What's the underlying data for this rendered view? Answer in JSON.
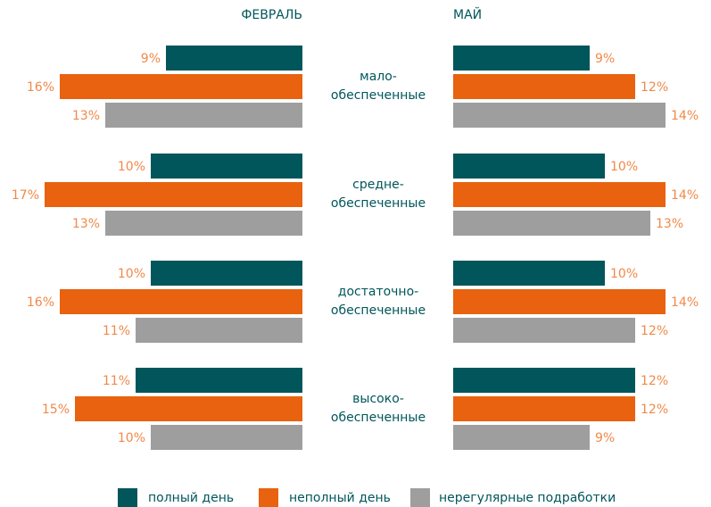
{
  "chart_data": [
    {
      "type": "bar",
      "orientation": "horizontal",
      "direction": "left",
      "title": "ФЕВРАЛЬ",
      "categories": [
        "мало-\nобеспеченные",
        "средне-\nобеспеченные",
        "достаточно-\nобеспеченные",
        "высоко-\nобеспеченные"
      ],
      "xlim": [
        0,
        17
      ],
      "series": [
        {
          "name": "полный день",
          "color": "#00565b",
          "values": [
            9,
            10,
            10,
            11
          ],
          "value_labels": [
            "9%",
            "10%",
            "10%",
            "11%"
          ]
        },
        {
          "name": "неполный день",
          "color": "#e8620f",
          "values": [
            16,
            17,
            16,
            15
          ],
          "value_labels": [
            "16%",
            "17%",
            "16%",
            "15%"
          ]
        },
        {
          "name": "нерегулярные подработки",
          "color": "#9e9e9e",
          "values": [
            13,
            13,
            11,
            10
          ],
          "value_labels": [
            "13%",
            "13%",
            "11%",
            "10%"
          ]
        }
      ]
    },
    {
      "type": "bar",
      "orientation": "horizontal",
      "direction": "right",
      "title": "МАЙ",
      "xlim": [
        0,
        17
      ],
      "series": [
        {
          "color": "#00565b",
          "values": [
            9,
            10,
            10,
            12
          ],
          "value_labels": [
            "9%",
            "10%",
            "10%",
            "12%"
          ]
        },
        {
          "color": "#e8620f",
          "values": [
            12,
            14,
            14,
            12
          ],
          "value_labels": [
            "12%",
            "14%",
            "14%",
            "12%"
          ]
        },
        {
          "color": "#9e9e9e",
          "values": [
            14,
            13,
            12,
            9
          ],
          "value_labels": [
            "14%",
            "13%",
            "12%",
            "9%"
          ]
        }
      ]
    }
  ]
}
